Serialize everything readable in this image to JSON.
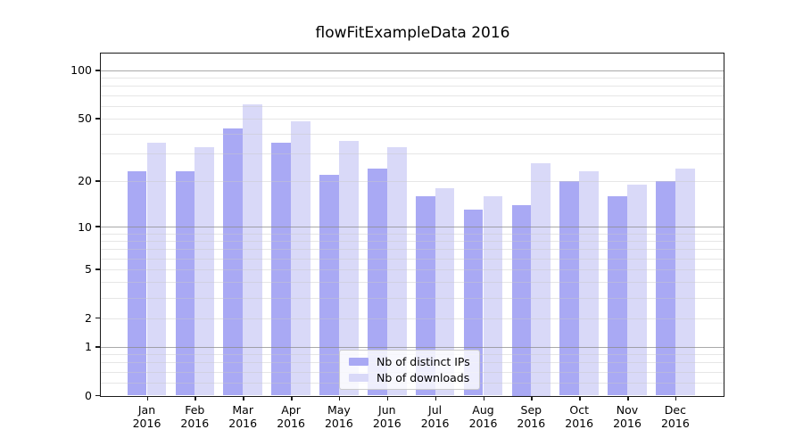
{
  "chart_data": {
    "type": "bar",
    "title": "flowFitExampleData 2016",
    "categories": [
      "Jan",
      "Feb",
      "Mar",
      "Apr",
      "May",
      "Jun",
      "Jul",
      "Aug",
      "Sep",
      "Oct",
      "Nov",
      "Dec"
    ],
    "year_label": "2016",
    "series": [
      {
        "name": "Nb of distinct IPs",
        "color": "#a9a9f4",
        "values": [
          23,
          23,
          43,
          35,
          22,
          24,
          16,
          13,
          14,
          20,
          16,
          20
        ]
      },
      {
        "name": "Nb of downloads",
        "color": "#d9d9f8",
        "values": [
          35,
          33,
          61,
          48,
          36,
          33,
          18,
          16,
          26,
          23,
          19,
          24
        ]
      }
    ],
    "xlabel": "",
    "ylabel": "",
    "yscale": "log1p",
    "ylim": [
      0,
      127
    ],
    "yticks": [
      0,
      1,
      2,
      5,
      10,
      20,
      50,
      100
    ],
    "ytick_labels": [
      "0",
      "1",
      "2",
      "5",
      "10",
      "20",
      "50",
      "100"
    ],
    "ytick_major": [
      1,
      10,
      100
    ],
    "grid": "horizontal",
    "legend_position": "lower center"
  }
}
